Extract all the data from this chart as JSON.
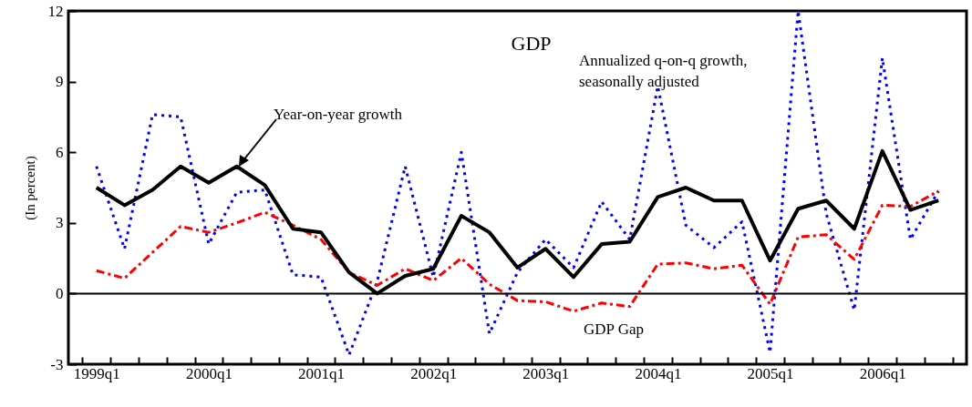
{
  "chart_data": {
    "type": "line",
    "title": "GDP",
    "ylabel": "(In percent)",
    "categories": [
      "1999q1",
      null,
      null,
      null,
      "2000q1",
      null,
      null,
      null,
      "2001q1",
      null,
      null,
      null,
      "2002q1",
      null,
      null,
      null,
      "2003q1",
      null,
      null,
      null,
      "2004q1",
      null,
      null,
      null,
      "2005q1",
      null,
      null,
      null,
      "2006q1",
      null,
      null
    ],
    "series": [
      {
        "name": "Annualized q-on-q growth,\nseasonally adjusted",
        "color": "#0000ff",
        "line_style": "dotted",
        "values": [
          5.4,
          1.9,
          7.6,
          7.5,
          2.1,
          4.3,
          4.4,
          0.8,
          0.7,
          -2.6,
          0.5,
          5.4,
          0.7,
          6.0,
          -1.7,
          0.9,
          2.3,
          1.1,
          3.9,
          2.3,
          8.8,
          2.9,
          1.95,
          3.05,
          -2.5,
          12.0,
          3.4,
          -0.7,
          10.0,
          2.3,
          4.35
        ]
      },
      {
        "name": "GDP Gap",
        "color": "#ff0000",
        "line_style": "dashed",
        "values": [
          0.97,
          0.65,
          1.75,
          2.85,
          2.6,
          3.0,
          3.45,
          2.9,
          2.3,
          0.9,
          0.35,
          1.05,
          0.55,
          1.5,
          0.4,
          -0.3,
          -0.35,
          -0.75,
          -0.4,
          -0.55,
          1.25,
          1.3,
          1.05,
          1.2,
          -0.45,
          2.4,
          2.5,
          1.45,
          3.75,
          3.7,
          4.35
        ]
      },
      {
        "name": "Year-on-year growth",
        "color": "#000000",
        "line_style": "solid",
        "values": [
          4.5,
          3.75,
          4.4,
          5.4,
          4.7,
          5.4,
          4.6,
          2.75,
          2.6,
          0.9,
          0.0,
          0.75,
          1.05,
          3.3,
          2.6,
          1.1,
          1.9,
          0.7,
          2.1,
          2.2,
          4.1,
          4.5,
          3.95,
          3.95,
          1.4,
          3.6,
          3.95,
          2.75,
          6.05,
          3.55,
          3.95
        ]
      }
    ],
    "ylim": [
      -3,
      12
    ],
    "yticks": [
      -3,
      0,
      3,
      6,
      9,
      12
    ],
    "ref_lines": [
      {
        "axis": "y",
        "value": 0,
        "color": "#000000"
      }
    ],
    "grid": false,
    "marker": "none"
  }
}
